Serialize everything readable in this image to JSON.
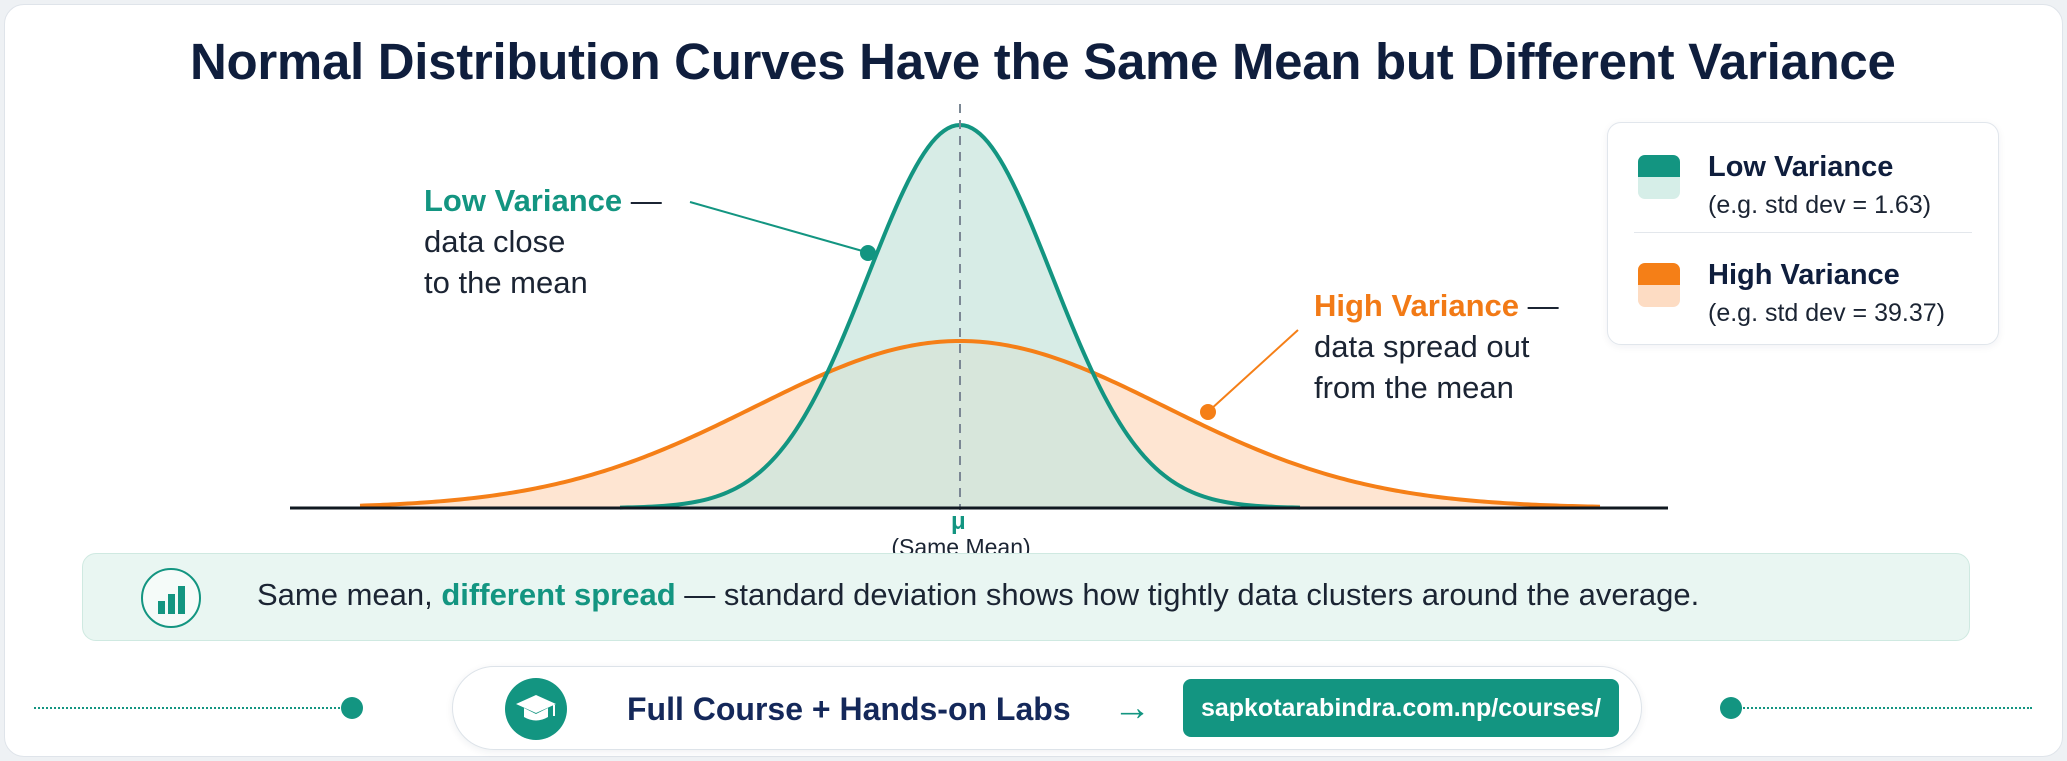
{
  "title": "Normal Distribution Curves Have the Same Mean but Different Variance",
  "annotations": {
    "low": {
      "heading": "Low Variance",
      "dash": "—",
      "line1": "data close",
      "line2": "to the mean"
    },
    "high": {
      "heading": "High Variance",
      "dash": "—",
      "line1": "data spread out",
      "line2": "from the mean"
    }
  },
  "mean_marker": {
    "symbol": "μ",
    "caption": "(Same Mean)"
  },
  "legend": {
    "items": [
      {
        "name": "Low Variance",
        "sub": "(e.g. std dev = 1.63)",
        "color": "#139581",
        "fill": "#d6eee8"
      },
      {
        "name": "High Variance",
        "sub": "(e.g. std dev = 39.37)",
        "color": "#f57f17",
        "fill": "#fddcc3"
      }
    ]
  },
  "insight": {
    "prefix": "Same mean, ",
    "emphasis": "different spread",
    "suffix": " — standard deviation shows how tightly data clusters around the average.",
    "icon": "bar-chart-icon"
  },
  "cta": {
    "icon": "graduation-cap-icon",
    "label": "Full Course + Hands-on Labs",
    "arrow": "→",
    "url": "sapkotarabindra.com.np/courses/"
  },
  "colors": {
    "teal": "#139581",
    "teal_fill": "#d6eee8",
    "orange": "#f57f17",
    "orange_fill": "#fddcc3",
    "navy": "#0f1e3d"
  },
  "chart_data": {
    "type": "area",
    "series": [
      {
        "name": "Low Variance",
        "mean": 0,
        "std_dev": 1.63
      },
      {
        "name": "High Variance",
        "mean": 0,
        "std_dev": 39.37
      }
    ],
    "grid": false,
    "legend": "top-right"
  }
}
